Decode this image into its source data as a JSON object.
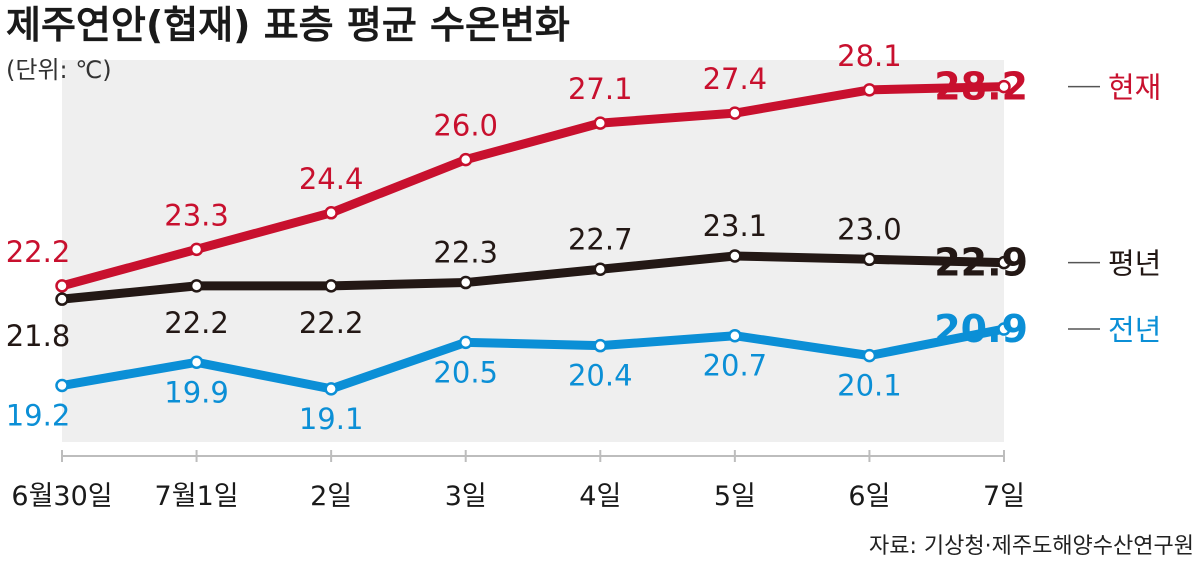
{
  "chart_data": {
    "type": "line",
    "title": "제주연안(협재) 표층 평균 수온변화",
    "unit": "(단위: ℃)",
    "categories": [
      "6월30일",
      "7월1일",
      "2일",
      "3일",
      "4일",
      "5일",
      "6일",
      "7일"
    ],
    "ylim": [
      17.5,
      29.0
    ],
    "grid": false,
    "series": [
      {
        "name": "현재",
        "color": "#c8102e",
        "values": [
          22.2,
          23.3,
          24.4,
          26.0,
          27.1,
          27.4,
          28.1,
          28.2
        ]
      },
      {
        "name": "평년",
        "color": "#231815",
        "values": [
          21.8,
          22.2,
          22.2,
          22.3,
          22.7,
          23.1,
          23.0,
          22.9
        ]
      },
      {
        "name": "전년",
        "color": "#0b8fd6",
        "values": [
          19.2,
          19.9,
          19.1,
          20.5,
          20.4,
          20.7,
          20.1,
          20.9
        ]
      }
    ],
    "source": "자료: 기상청·제주도해양수산연구원"
  }
}
